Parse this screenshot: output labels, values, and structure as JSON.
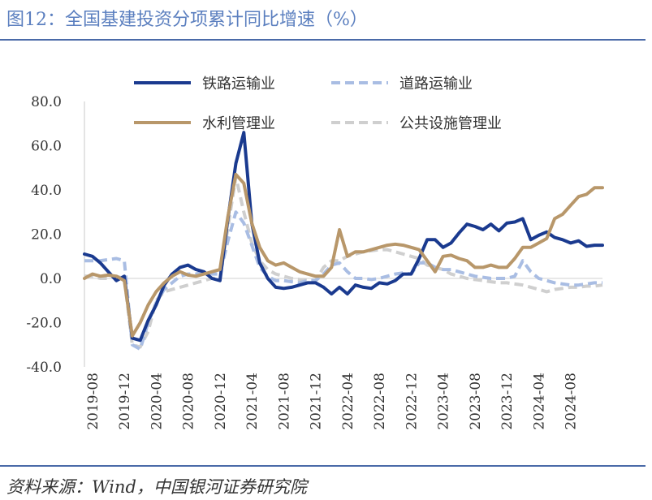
{
  "header": {
    "title": "图12：全国基建投资分项累计同比增速（%）"
  },
  "footer": {
    "source": "资料来源：Wind，中国银河证券研究院"
  },
  "chart_data": {
    "type": "line",
    "title": "全国基建投资分项累计同比增速（%）",
    "xlabel": "",
    "ylabel": "",
    "ylim": [
      -40,
      80
    ],
    "yticks": [
      -40,
      -20,
      0,
      20,
      40,
      60,
      80
    ],
    "ytick_labels": [
      "-40.0",
      "-20.0",
      "0.0",
      "20.0",
      "40.0",
      "60.0",
      "80.0"
    ],
    "xtick_labels": [
      "2019-08",
      "2019-12",
      "2020-04",
      "2020-08",
      "2020-12",
      "2021-04",
      "2021-08",
      "2021-12",
      "2022-04",
      "2022-08",
      "2022-12",
      "2023-04",
      "2023-08",
      "2023-12",
      "2024-04",
      "2024-08"
    ],
    "x": [
      "2019-07",
      "2019-08",
      "2019-09",
      "2019-10",
      "2019-11",
      "2019-12",
      "2020-01",
      "2020-02",
      "2020-03",
      "2020-04",
      "2020-05",
      "2020-06",
      "2020-07",
      "2020-08",
      "2020-09",
      "2020-10",
      "2020-11",
      "2020-12",
      "2021-01",
      "2021-02",
      "2021-03",
      "2021-04",
      "2021-05",
      "2021-06",
      "2021-07",
      "2021-08",
      "2021-09",
      "2021-10",
      "2021-11",
      "2021-12",
      "2022-01",
      "2022-02",
      "2022-03",
      "2022-04",
      "2022-05",
      "2022-06",
      "2022-07",
      "2022-08",
      "2022-09",
      "2022-10",
      "2022-11",
      "2022-12",
      "2023-01",
      "2023-02",
      "2023-03",
      "2023-04",
      "2023-05",
      "2023-06",
      "2023-07",
      "2023-08",
      "2023-09",
      "2023-10",
      "2023-11",
      "2023-12",
      "2024-01",
      "2024-02",
      "2024-03",
      "2024-04",
      "2024-05",
      "2024-06",
      "2024-07",
      "2024-08",
      "2024-09",
      "2024-10",
      "2024-11",
      "2024-12"
    ],
    "legend_position": "top",
    "grid": false,
    "series": [
      {
        "name": "铁路运输业",
        "color": "#1a3a8f",
        "dash": "solid",
        "values": [
          11,
          10,
          7,
          3,
          -1,
          1,
          -27,
          -28,
          -19,
          -12,
          -3,
          2,
          5,
          6,
          4,
          3,
          0,
          -1,
          27,
          52,
          66,
          25,
          7,
          0,
          -4,
          -4.5,
          -4,
          -3,
          -2,
          -2,
          -4,
          -7,
          -4,
          -7,
          -3,
          -4,
          -4.5,
          -2,
          -2.5,
          -1,
          2,
          2,
          9,
          17.5,
          17.5,
          14,
          16,
          20.5,
          24.5,
          23.5,
          22,
          24.5,
          21.5,
          25,
          25.5,
          27,
          17.5,
          19.5,
          21,
          18.5,
          17.5,
          16,
          17,
          14.5,
          15,
          15
        ]
      },
      {
        "name": "道路运输业",
        "color": "#a9bde3",
        "dash": "dashed",
        "values": [
          8,
          8,
          8,
          8.5,
          9,
          8,
          -30,
          -32,
          -20,
          -11,
          -5,
          -2,
          1,
          2,
          2,
          3,
          2,
          2,
          17,
          30,
          25,
          15,
          5,
          1,
          -1,
          -1,
          -1.5,
          -2,
          -1,
          -1,
          2,
          6,
          7,
          3,
          0,
          0,
          -0.5,
          0,
          1,
          2,
          2.5,
          2,
          7,
          7,
          5,
          4,
          4,
          3,
          2,
          1,
          0.5,
          0,
          0,
          0,
          1,
          8,
          3,
          0,
          -1,
          -2,
          -2.5,
          -3,
          -3,
          -2.5,
          -2,
          -2
        ]
      },
      {
        "name": "水利管理业",
        "color": "#b8976a",
        "dash": "solid",
        "values": [
          0,
          2,
          1,
          1.5,
          1,
          -1,
          -26,
          -20,
          -12,
          -6,
          -2,
          1,
          3,
          1.5,
          1,
          2,
          3,
          4,
          28,
          47,
          43,
          25,
          14,
          8,
          6,
          7,
          5,
          3,
          2,
          1,
          1,
          5,
          22,
          10,
          12,
          12,
          13,
          14,
          15,
          15.5,
          15,
          14,
          13,
          8,
          3,
          10,
          10.5,
          9,
          8,
          5,
          5,
          6,
          5,
          5,
          9,
          14,
          14,
          16,
          18,
          27,
          29,
          33,
          37,
          38,
          41,
          41
        ]
      },
      {
        "name": "公共设施管理业",
        "color": "#cfcfcf",
        "dash": "dashed",
        "values": [
          1,
          1,
          0,
          0,
          1,
          0,
          -30,
          -31,
          -24,
          -10,
          -6,
          -5,
          -4,
          -3,
          -2,
          -1,
          0,
          0,
          23,
          46,
          30,
          16,
          8,
          4,
          2,
          1,
          0,
          -0.5,
          -1,
          -1,
          5,
          8,
          8,
          10,
          11,
          12,
          12.5,
          13,
          13,
          12,
          11,
          10,
          9,
          6,
          5,
          4,
          2,
          1,
          0,
          -0.5,
          -1,
          -1.5,
          -2,
          -2,
          -2.5,
          -3,
          -4,
          -5,
          -6,
          -5,
          -4.5,
          -4,
          -4,
          -3.5,
          -3.5,
          -3
        ]
      }
    ]
  }
}
